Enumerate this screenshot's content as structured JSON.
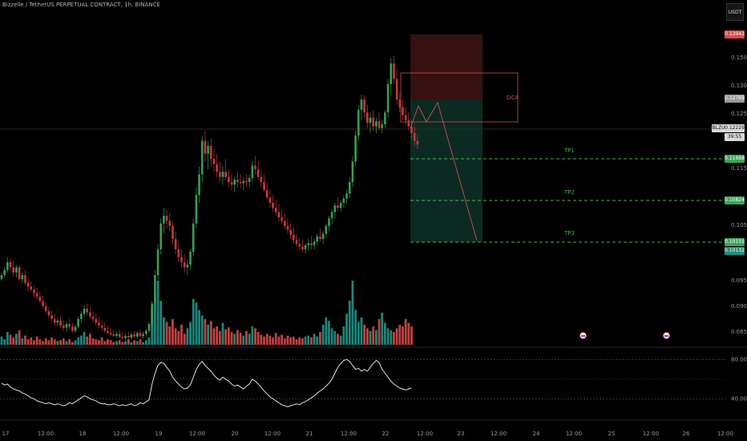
{
  "header": {
    "title": "Bizzelle / TetherUS PERPETUAL CONTRACT, 1h, BINANCE",
    "currency": "USDT"
  },
  "annotations": {
    "dca": "DCA",
    "tp1": "TP1",
    "tp2": "TP2",
    "tp3": "TP3"
  },
  "badges": {
    "stop": "0.13942",
    "entry": "0.12769",
    "symbol": "BLZUSDT.P",
    "last": "0.12229",
    "countdown": "39:55",
    "tp1": "0.11688",
    "tp2": "0.10824",
    "tp3": "0.10155",
    "target": "0.10132"
  },
  "colors": {
    "bull": "#26a69a",
    "bear": "#ef5350",
    "candle_bull": "#3a9d55",
    "candle_bear": "#c23b3b",
    "tp_line": "#4caf50",
    "dca": "#d04c57",
    "rsi": "#e0e0e0"
  },
  "chart_data": [
    {
      "type": "candlestick",
      "title": "Bizzelle / TetherUS PERPETUAL CONTRACT, 1h, BINANCE",
      "y_ticks": [
        "0.15000",
        "0.13000",
        "0.12500",
        "0.11500",
        "0.10500",
        "0.09500",
        "0.09000",
        "0.08500"
      ],
      "x_ticks": [
        "17",
        "12:00",
        "18",
        "12:00",
        "19",
        "12:00",
        "20",
        "12:00",
        "21",
        "12:00",
        "22",
        "12:00",
        "23",
        "12:00",
        "24",
        "12:00",
        "25",
        "12:00",
        "26",
        "12:00"
      ],
      "ylim": [
        0.0835,
        0.1495
      ],
      "candles": [
        [
          0.0962,
          0.0975,
          0.0958,
          0.097
        ],
        [
          0.097,
          0.0985,
          0.0965,
          0.098
        ],
        [
          0.098,
          0.1005,
          0.0975,
          0.0995
        ],
        [
          0.0995,
          0.1003,
          0.0978,
          0.0985
        ],
        [
          0.0985,
          0.0998,
          0.0968,
          0.0975
        ],
        [
          0.0975,
          0.099,
          0.0965,
          0.0985
        ],
        [
          0.0985,
          0.099,
          0.0958,
          0.0962
        ],
        [
          0.0962,
          0.0975,
          0.0955,
          0.097
        ],
        [
          0.097,
          0.098,
          0.095,
          0.0955
        ],
        [
          0.0955,
          0.0965,
          0.094,
          0.0948
        ],
        [
          0.0948,
          0.0958,
          0.0938,
          0.0942
        ],
        [
          0.0942,
          0.095,
          0.0928,
          0.0935
        ],
        [
          0.0935,
          0.0945,
          0.0922,
          0.0928
        ],
        [
          0.0928,
          0.0938,
          0.0915,
          0.092
        ],
        [
          0.092,
          0.093,
          0.0905,
          0.091
        ],
        [
          0.091,
          0.0918,
          0.0895,
          0.09
        ],
        [
          0.09,
          0.0908,
          0.0888,
          0.0892
        ],
        [
          0.0892,
          0.0902,
          0.088,
          0.0885
        ],
        [
          0.0885,
          0.0895,
          0.0872,
          0.0878
        ],
        [
          0.0878,
          0.0888,
          0.087,
          0.0882
        ],
        [
          0.0882,
          0.089,
          0.0868,
          0.0872
        ],
        [
          0.0872,
          0.0882,
          0.0862,
          0.0868
        ],
        [
          0.0868,
          0.088,
          0.086,
          0.0875
        ],
        [
          0.0875,
          0.0885,
          0.0865,
          0.087
        ],
        [
          0.087,
          0.0878,
          0.0858,
          0.0862
        ],
        [
          0.0862,
          0.0875,
          0.0858,
          0.087
        ],
        [
          0.087,
          0.089,
          0.0866,
          0.0885
        ],
        [
          0.0885,
          0.09,
          0.0878,
          0.0895
        ],
        [
          0.0895,
          0.0912,
          0.0888,
          0.0905
        ],
        [
          0.0905,
          0.0915,
          0.0892,
          0.0898
        ],
        [
          0.0898,
          0.0908,
          0.0885,
          0.089
        ],
        [
          0.089,
          0.09,
          0.0878,
          0.0885
        ],
        [
          0.0885,
          0.0895,
          0.0872,
          0.0878
        ],
        [
          0.0878,
          0.0888,
          0.0868,
          0.0872
        ],
        [
          0.0872,
          0.0882,
          0.0862,
          0.0868
        ],
        [
          0.0868,
          0.0878,
          0.0858,
          0.0862
        ],
        [
          0.0862,
          0.0872,
          0.0855,
          0.0858
        ],
        [
          0.0858,
          0.0868,
          0.0852,
          0.0855
        ],
        [
          0.0855,
          0.0865,
          0.085,
          0.0852
        ],
        [
          0.0852,
          0.0862,
          0.0848,
          0.0856
        ],
        [
          0.0856,
          0.0865,
          0.0848,
          0.085
        ],
        [
          0.085,
          0.086,
          0.0845,
          0.0848
        ],
        [
          0.0848,
          0.0858,
          0.0844,
          0.0852
        ],
        [
          0.0852,
          0.086,
          0.0846,
          0.0849
        ],
        [
          0.0849,
          0.0858,
          0.0845,
          0.0855
        ],
        [
          0.0855,
          0.0862,
          0.0848,
          0.0851
        ],
        [
          0.0851,
          0.0862,
          0.0846,
          0.0858
        ],
        [
          0.0858,
          0.0865,
          0.085,
          0.0852
        ],
        [
          0.0852,
          0.086,
          0.0847,
          0.0856
        ],
        [
          0.0856,
          0.0866,
          0.085,
          0.0862
        ],
        [
          0.0862,
          0.088,
          0.0858,
          0.0875
        ],
        [
          0.0875,
          0.092,
          0.087,
          0.0915
        ],
        [
          0.0915,
          0.098,
          0.0905,
          0.097
        ],
        [
          0.097,
          0.103,
          0.096,
          0.102
        ],
        [
          0.102,
          0.108,
          0.101,
          0.107
        ],
        [
          0.107,
          0.11,
          0.105,
          0.1085
        ],
        [
          0.1085,
          0.1095,
          0.106,
          0.1075
        ],
        [
          0.1075,
          0.109,
          0.1055,
          0.1065
        ],
        [
          0.1065,
          0.1075,
          0.103,
          0.104
        ],
        [
          0.104,
          0.1055,
          0.101,
          0.102
        ],
        [
          0.102,
          0.1035,
          0.0995,
          0.1005
        ],
        [
          0.1005,
          0.102,
          0.0985,
          0.0995
        ],
        [
          0.0995,
          0.101,
          0.0975,
          0.0985
        ],
        [
          0.0985,
          0.1,
          0.097,
          0.099
        ],
        [
          0.099,
          0.102,
          0.098,
          0.1015
        ],
        [
          0.1015,
          0.108,
          0.1005,
          0.107
        ],
        [
          0.107,
          0.114,
          0.106,
          0.1125
        ],
        [
          0.1125,
          0.118,
          0.111,
          0.1165
        ],
        [
          0.1165,
          0.124,
          0.115,
          0.123
        ],
        [
          0.123,
          0.125,
          0.119,
          0.1205
        ],
        [
          0.1205,
          0.123,
          0.1175,
          0.122
        ],
        [
          0.122,
          0.1235,
          0.118,
          0.1195
        ],
        [
          0.1195,
          0.1215,
          0.117,
          0.1185
        ],
        [
          0.1185,
          0.1205,
          0.116,
          0.117
        ],
        [
          0.117,
          0.119,
          0.115,
          0.116
        ],
        [
          0.116,
          0.118,
          0.1145,
          0.117
        ],
        [
          0.117,
          0.1195,
          0.1155,
          0.116
        ],
        [
          0.116,
          0.1175,
          0.114,
          0.115
        ],
        [
          0.115,
          0.1165,
          0.1135,
          0.1145
        ],
        [
          0.1145,
          0.116,
          0.113,
          0.1155
        ],
        [
          0.1155,
          0.117,
          0.114,
          0.115
        ],
        [
          0.115,
          0.1165,
          0.1138,
          0.1148
        ],
        [
          0.1148,
          0.116,
          0.1135,
          0.1152
        ],
        [
          0.1152,
          0.1165,
          0.114,
          0.115
        ],
        [
          0.115,
          0.1165,
          0.114,
          0.1158
        ],
        [
          0.1158,
          0.119,
          0.115,
          0.1182
        ],
        [
          0.1182,
          0.12,
          0.1165,
          0.1175
        ],
        [
          0.1175,
          0.119,
          0.1155,
          0.116
        ],
        [
          0.116,
          0.1175,
          0.114,
          0.115
        ],
        [
          0.115,
          0.1165,
          0.113,
          0.1135
        ],
        [
          0.1135,
          0.115,
          0.1115,
          0.112
        ],
        [
          0.112,
          0.1135,
          0.11,
          0.111
        ],
        [
          0.111,
          0.1125,
          0.1092,
          0.11
        ],
        [
          0.11,
          0.1115,
          0.1085,
          0.1092
        ],
        [
          0.1092,
          0.1108,
          0.1075,
          0.1082
        ],
        [
          0.1082,
          0.1098,
          0.1068,
          0.1075
        ],
        [
          0.1075,
          0.109,
          0.1058,
          0.1065
        ],
        [
          0.1065,
          0.108,
          0.105,
          0.1058
        ],
        [
          0.1058,
          0.1072,
          0.104,
          0.1048
        ],
        [
          0.1048,
          0.1062,
          0.1032,
          0.1038
        ],
        [
          0.1038,
          0.105,
          0.1025,
          0.103
        ],
        [
          0.103,
          0.1042,
          0.1018,
          0.1025
        ],
        [
          0.1025,
          0.1038,
          0.1015,
          0.102
        ],
        [
          0.102,
          0.1032,
          0.1012,
          0.1028
        ],
        [
          0.1028,
          0.104,
          0.1018,
          0.1032
        ],
        [
          0.1032,
          0.1045,
          0.102,
          0.1028
        ],
        [
          0.1028,
          0.104,
          0.102,
          0.1035
        ],
        [
          0.1035,
          0.105,
          0.1028,
          0.1045
        ],
        [
          0.1045,
          0.106,
          0.1035,
          0.104
        ],
        [
          0.104,
          0.1055,
          0.103,
          0.105
        ],
        [
          0.105,
          0.107,
          0.1042,
          0.1065
        ],
        [
          0.1065,
          0.1085,
          0.1055,
          0.108
        ],
        [
          0.108,
          0.1098,
          0.1068,
          0.1092
        ],
        [
          0.1092,
          0.111,
          0.108,
          0.1105
        ],
        [
          0.1105,
          0.112,
          0.1095,
          0.11
        ],
        [
          0.11,
          0.1115,
          0.1092,
          0.111
        ],
        [
          0.111,
          0.1125,
          0.11,
          0.1118
        ],
        [
          0.1118,
          0.1135,
          0.1108,
          0.1128
        ],
        [
          0.1128,
          0.116,
          0.112,
          0.115
        ],
        [
          0.115,
          0.12,
          0.114,
          0.119
        ],
        [
          0.119,
          0.125,
          0.118,
          0.124
        ],
        [
          0.124,
          0.13,
          0.123,
          0.129
        ],
        [
          0.129,
          0.132,
          0.127,
          0.131
        ],
        [
          0.131,
          0.1318,
          0.1275,
          0.1285
        ],
        [
          0.1285,
          0.13,
          0.1255,
          0.1265
        ],
        [
          0.1265,
          0.1285,
          0.1245,
          0.1275
        ],
        [
          0.1275,
          0.129,
          0.125,
          0.1258
        ],
        [
          0.1258,
          0.1275,
          0.1245,
          0.1268
        ],
        [
          0.1268,
          0.1285,
          0.125,
          0.1255
        ],
        [
          0.1255,
          0.127,
          0.1245,
          0.1262
        ],
        [
          0.1262,
          0.129,
          0.1255,
          0.1285
        ],
        [
          0.1285,
          0.135,
          0.1275,
          0.134
        ],
        [
          0.134,
          0.139,
          0.132,
          0.138
        ],
        [
          0.138,
          0.1395,
          0.134,
          0.135
        ],
        [
          0.135,
          0.137,
          0.13,
          0.131
        ],
        [
          0.131,
          0.1325,
          0.1285,
          0.1295
        ],
        [
          0.1295,
          0.131,
          0.127,
          0.128
        ],
        [
          0.128,
          0.1295,
          0.126,
          0.127
        ],
        [
          0.127,
          0.1285,
          0.125,
          0.1258
        ],
        [
          0.1258,
          0.127,
          0.1235,
          0.1245
        ],
        [
          0.1245,
          0.1258,
          0.122,
          0.123
        ],
        [
          0.123,
          0.1242,
          0.1215,
          0.1223
        ]
      ],
      "volume": [
        9,
        6,
        14,
        11,
        8,
        12,
        16,
        7,
        10,
        6,
        8,
        5,
        9,
        6,
        4,
        7,
        5,
        8,
        6,
        4,
        5,
        7,
        4,
        6,
        3,
        5,
        8,
        10,
        14,
        9,
        12,
        7,
        6,
        5,
        8,
        4,
        6,
        5,
        3,
        4,
        5,
        3,
        4,
        6,
        3,
        5,
        4,
        6,
        3,
        5,
        8,
        40,
        55,
        70,
        48,
        30,
        25,
        20,
        28,
        18,
        15,
        22,
        12,
        18,
        25,
        50,
        46,
        38,
        32,
        28,
        22,
        26,
        18,
        20,
        15,
        24,
        17,
        19,
        14,
        12,
        16,
        13,
        10,
        15,
        12,
        20,
        18,
        14,
        11,
        9,
        12,
        10,
        8,
        13,
        9,
        11,
        7,
        10,
        8,
        9,
        6,
        8,
        7,
        9,
        10,
        8,
        12,
        9,
        14,
        22,
        30,
        26,
        18,
        15,
        12,
        10,
        20,
        34,
        48,
        70,
        38,
        25,
        30,
        22,
        18,
        15,
        20,
        16,
        28,
        35,
        24,
        18,
        16,
        14,
        18,
        22,
        20,
        28,
        24,
        20
      ],
      "rsi": {
        "levels": [
          "80.00",
          "40.00"
        ],
        "values": [
          56,
          54,
          55,
          52,
          50,
          49,
          48,
          46,
          45,
          43,
          41,
          40,
          38,
          37,
          36,
          35,
          36,
          35,
          34,
          35,
          34,
          33,
          34,
          36,
          35,
          37,
          39,
          41,
          43,
          42,
          40,
          39,
          38,
          36,
          35,
          35,
          34,
          34,
          35,
          34,
          33,
          34,
          33,
          34,
          35,
          33,
          34,
          36,
          35,
          37,
          39,
          55,
          66,
          74,
          77,
          76,
          72,
          68,
          62,
          58,
          55,
          52,
          50,
          51,
          54,
          62,
          70,
          75,
          78,
          74,
          71,
          68,
          64,
          61,
          59,
          62,
          60,
          58,
          55,
          53,
          54,
          52,
          50,
          53,
          55,
          60,
          58,
          55,
          52,
          48,
          45,
          42,
          40,
          38,
          36,
          34,
          33,
          32,
          33,
          34,
          35,
          34,
          36,
          37,
          39,
          41,
          43,
          46,
          48,
          50,
          53,
          56,
          60,
          66,
          72,
          76,
          79,
          80,
          78,
          74,
          70,
          71,
          68,
          70,
          68,
          72,
          76,
          79,
          77,
          70,
          66,
          62,
          58,
          55,
          53,
          51,
          50,
          49,
          50,
          51
        ]
      }
    }
  ]
}
